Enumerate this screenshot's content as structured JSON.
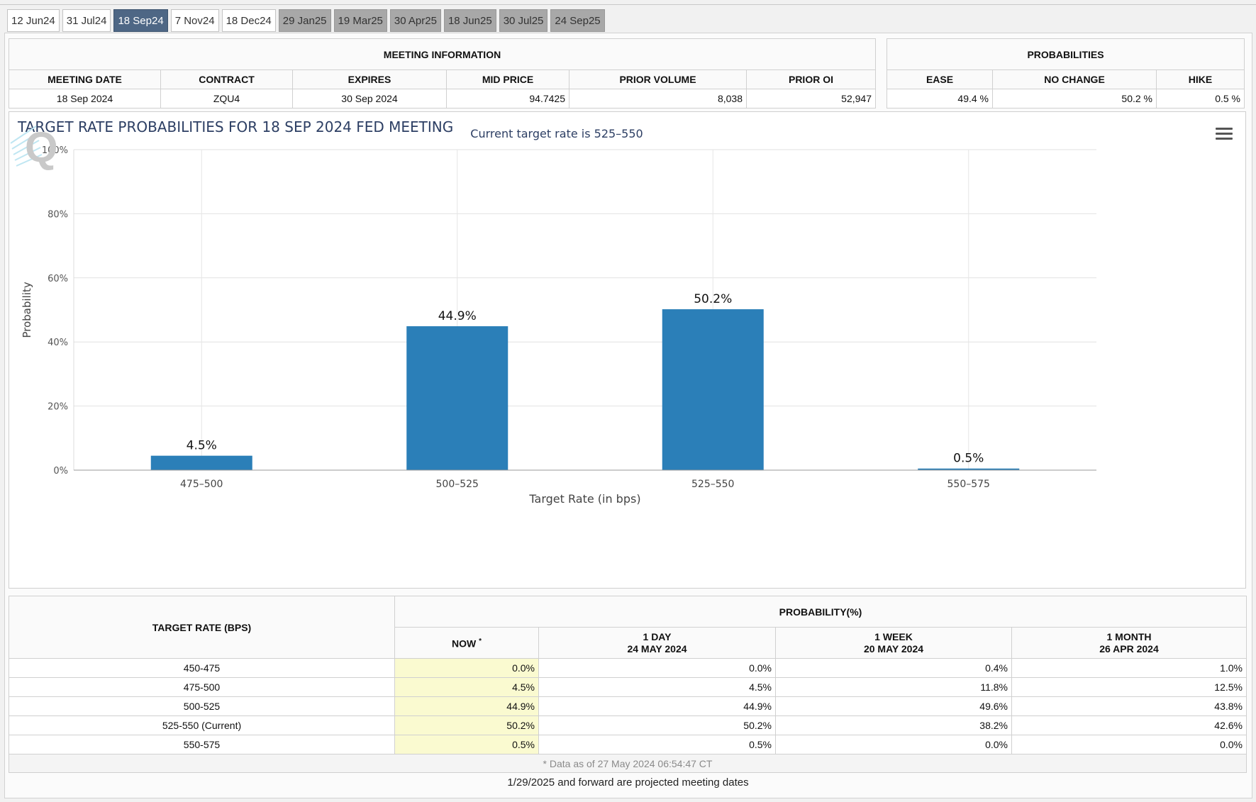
{
  "tabs": [
    {
      "label": "12 Jun24",
      "state": "normal"
    },
    {
      "label": "31 Jul24",
      "state": "normal"
    },
    {
      "label": "18 Sep24",
      "state": "active"
    },
    {
      "label": "7 Nov24",
      "state": "normal"
    },
    {
      "label": "18 Dec24",
      "state": "normal"
    },
    {
      "label": "29 Jan25",
      "state": "projected"
    },
    {
      "label": "19 Mar25",
      "state": "projected"
    },
    {
      "label": "30 Apr25",
      "state": "projected"
    },
    {
      "label": "18 Jun25",
      "state": "projected"
    },
    {
      "label": "30 Jul25",
      "state": "projected"
    },
    {
      "label": "24 Sep25",
      "state": "projected"
    }
  ],
  "meeting_info": {
    "title": "MEETING INFORMATION",
    "headers": [
      "MEETING DATE",
      "CONTRACT",
      "EXPIRES",
      "MID PRICE",
      "PRIOR VOLUME",
      "PRIOR OI"
    ],
    "values": [
      "18 Sep 2024",
      "ZQU4",
      "30 Sep 2024",
      "94.7425",
      "8,038",
      "52,947"
    ]
  },
  "probabilities": {
    "title": "PROBABILITIES",
    "headers": [
      "EASE",
      "NO CHANGE",
      "HIKE"
    ],
    "values": [
      "49.4 %",
      "50.2 %",
      "0.5 %"
    ]
  },
  "chart_data": {
    "type": "bar",
    "title": "TARGET RATE PROBABILITIES FOR 18 SEP 2024 FED MEETING",
    "subtitle": "Current target rate is 525–550",
    "xlabel": "Target Rate (in bps)",
    "ylabel": "Probability",
    "categories": [
      "475–500",
      "500–525",
      "525–550",
      "550–575"
    ],
    "values": [
      4.5,
      44.9,
      50.2,
      0.5
    ],
    "data_labels": [
      "4.5%",
      "44.9%",
      "50.2%",
      "0.5%"
    ],
    "ylim": [
      0,
      100
    ],
    "yticks": [
      0,
      20,
      40,
      60,
      80,
      100
    ],
    "ytick_labels": [
      "0%",
      "20%",
      "40%",
      "60%",
      "80%",
      "100%"
    ],
    "grid": true,
    "bar_color": "#2b7fb8"
  },
  "target_table": {
    "rate_header": "TARGET RATE (BPS)",
    "prob_header": "PROBABILITY(%)",
    "col_now": "NOW",
    "col_now_mark": "*",
    "col_1day_title": "1 DAY",
    "col_1day_date": "24 MAY 2024",
    "col_1week_title": "1 WEEK",
    "col_1week_date": "20 MAY 2024",
    "col_1month_title": "1 MONTH",
    "col_1month_date": "26 APR 2024",
    "rows": [
      {
        "rate": "450-475",
        "now": "0.0%",
        "day": "0.0%",
        "week": "0.4%",
        "month": "1.0%"
      },
      {
        "rate": "475-500",
        "now": "4.5%",
        "day": "4.5%",
        "week": "11.8%",
        "month": "12.5%"
      },
      {
        "rate": "500-525",
        "now": "44.9%",
        "day": "44.9%",
        "week": "49.6%",
        "month": "43.8%"
      },
      {
        "rate": "525-550 (Current)",
        "now": "50.2%",
        "day": "50.2%",
        "week": "38.2%",
        "month": "42.6%"
      },
      {
        "rate": "550-575",
        "now": "0.5%",
        "day": "0.5%",
        "week": "0.0%",
        "month": "0.0%"
      }
    ],
    "note": "* Data as of 27 May 2024 06:54:47 CT"
  },
  "footer": "1/29/2025 and forward are projected meeting dates"
}
